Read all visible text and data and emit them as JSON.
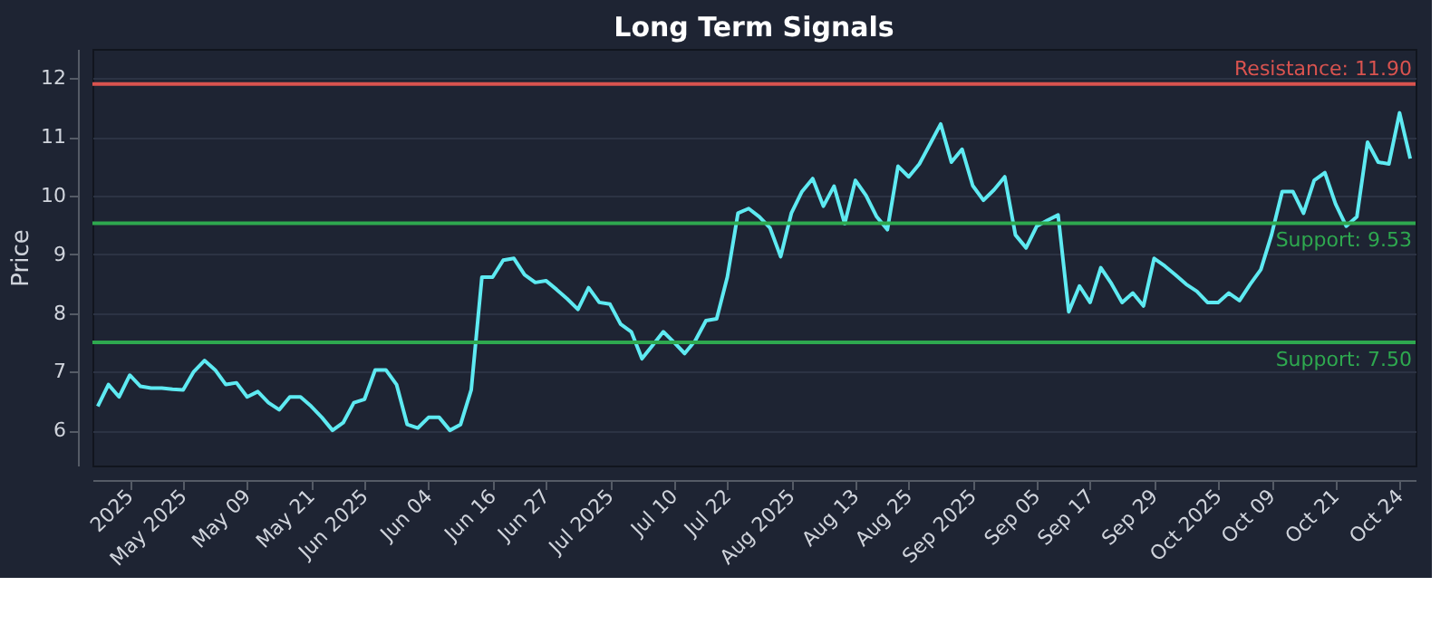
{
  "chart_data": {
    "type": "line",
    "title": "Long Term Signals",
    "ylabel": "Price",
    "categories": [
      null,
      null,
      null,
      "2025",
      null,
      null,
      null,
      null,
      "May 2025",
      null,
      null,
      null,
      null,
      null,
      "May 09",
      null,
      null,
      null,
      null,
      null,
      "May 21",
      null,
      null,
      null,
      null,
      "Jun 2025",
      null,
      null,
      null,
      null,
      null,
      "Jun 04",
      null,
      null,
      null,
      null,
      null,
      "Jun 16",
      null,
      null,
      null,
      null,
      "Jun 27",
      null,
      null,
      null,
      null,
      null,
      "Jul 2025",
      null,
      null,
      null,
      null,
      null,
      "Jul 10",
      null,
      null,
      null,
      null,
      "Jul 22",
      null,
      null,
      null,
      null,
      null,
      "Aug 2025",
      null,
      null,
      null,
      null,
      null,
      "Aug 13",
      null,
      null,
      null,
      null,
      "Aug 25",
      null,
      null,
      null,
      null,
      null,
      "Sep 2025",
      null,
      null,
      null,
      null,
      null,
      "Sep 05",
      null,
      null,
      null,
      null,
      "Sep 17",
      null,
      null,
      null,
      null,
      null,
      "Sep 29",
      null,
      null,
      null,
      null,
      null,
      "Oct 2025",
      null,
      null,
      null,
      null,
      "Oct 09",
      null,
      null,
      null,
      null,
      null,
      "Oct 21",
      null,
      null,
      null,
      null,
      null,
      "Oct 24",
      null
    ],
    "series": [
      {
        "color": "#5eeaf2",
        "values": [
          6.41,
          6.78,
          6.57,
          6.94,
          6.75,
          6.72,
          6.72,
          6.7,
          6.69,
          7.0,
          7.19,
          7.03,
          6.78,
          6.81,
          6.57,
          6.66,
          6.47,
          6.35,
          6.57,
          6.57,
          6.41,
          6.22,
          6.0,
          6.13,
          6.47,
          6.53,
          7.03,
          7.03,
          6.78,
          6.1,
          6.04,
          6.22,
          6.22,
          6.0,
          6.1,
          6.69,
          8.61,
          8.61,
          8.9,
          8.93,
          8.65,
          8.52,
          8.55,
          8.4,
          8.24,
          8.06,
          8.43,
          8.18,
          8.15,
          7.81,
          7.68,
          7.22,
          7.45,
          7.68,
          7.5,
          7.31,
          7.53,
          7.87,
          7.9,
          8.61,
          9.7,
          9.78,
          9.64,
          9.45,
          8.96,
          9.7,
          10.07,
          10.29,
          9.82,
          10.16,
          9.52,
          10.26,
          10.0,
          9.64,
          9.42,
          10.5,
          10.32,
          10.54,
          10.88,
          11.22,
          10.57,
          10.79,
          10.17,
          9.92,
          10.1,
          10.32,
          9.33,
          9.11,
          9.48,
          9.58,
          9.67,
          8.02,
          8.46,
          8.18,
          8.77,
          8.5,
          8.18,
          8.34,
          8.12,
          8.93,
          8.8,
          8.65,
          8.49,
          8.37,
          8.18,
          8.18,
          8.34,
          8.21,
          8.49,
          8.74,
          9.33,
          10.07,
          10.07,
          9.7,
          10.26,
          10.39,
          9.86,
          9.48,
          9.64,
          10.91,
          10.57,
          10.54,
          11.41,
          10.63
        ]
      }
    ],
    "ylim": [
      5.4,
      12.5
    ],
    "yticks": [
      6,
      7,
      8,
      9,
      10,
      11,
      12
    ],
    "grid": "y",
    "marker": "none",
    "line_style": "solid",
    "ref_lines": [
      {
        "axis": "y",
        "value": 11.9,
        "label": "Resistance: 11.90",
        "color": "#d9534f"
      },
      {
        "axis": "y",
        "value": 9.53,
        "label": "Support: 9.53",
        "color": "#2ea84f"
      },
      {
        "axis": "y",
        "value": 7.5,
        "label": "Support: 7.50",
        "color": "#2ea84f"
      }
    ]
  }
}
